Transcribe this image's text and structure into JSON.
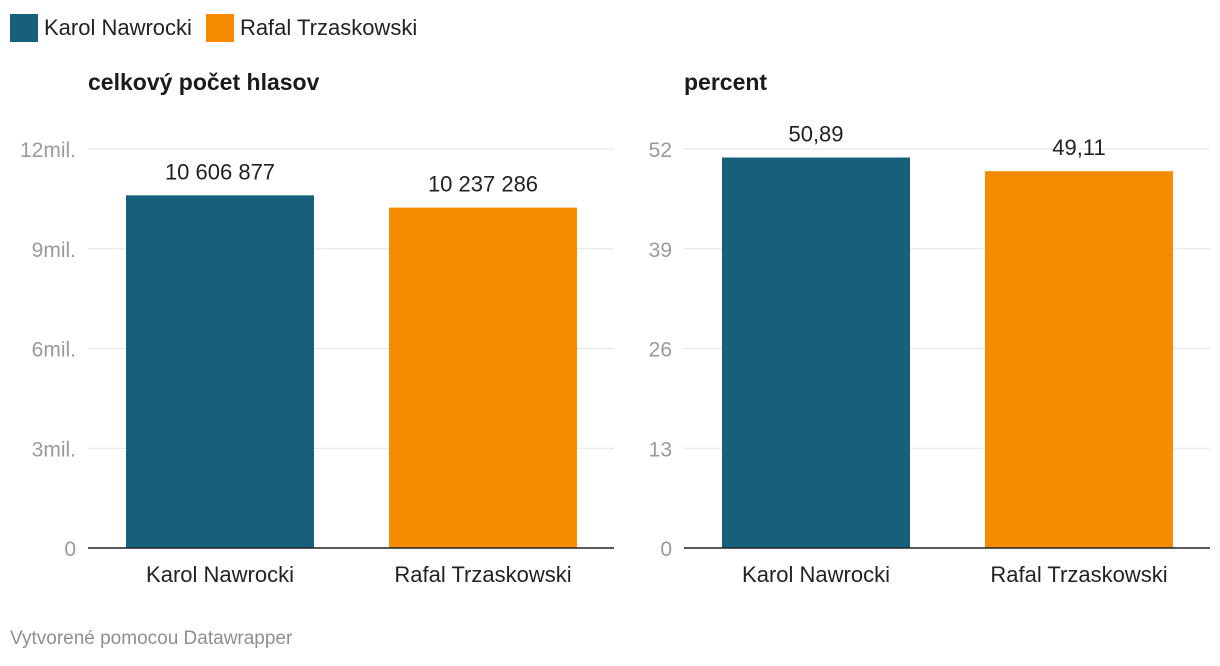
{
  "legend": [
    {
      "label": "Karol Nawrocki",
      "color": "#17607c"
    },
    {
      "label": "Rafal Trzaskowski",
      "color": "#f78b00"
    }
  ],
  "footer": "Vytvorené pomocou Datawrapper",
  "chart_data": [
    {
      "type": "bar",
      "title": "celkový počet hlasov",
      "categories": [
        "Karol Nawrocki",
        "Rafal Trzaskowski"
      ],
      "values": [
        10606877,
        10237286
      ],
      "value_labels": [
        "10 606 877",
        "10 237 286"
      ],
      "colors": [
        "#17607c",
        "#f78b00"
      ],
      "ylim": [
        0,
        12000000
      ],
      "yticks": [
        0,
        3000000,
        6000000,
        9000000,
        12000000
      ],
      "ytick_labels": [
        "0",
        "3mil.",
        "6mil.",
        "9mil.",
        "12mil."
      ],
      "grid": true
    },
    {
      "type": "bar",
      "title": "percent",
      "categories": [
        "Karol Nawrocki",
        "Rafal Trzaskowski"
      ],
      "values": [
        50.89,
        49.11
      ],
      "value_labels": [
        "50,89",
        "49,11"
      ],
      "colors": [
        "#17607c",
        "#f78b00"
      ],
      "ylim": [
        0,
        52
      ],
      "yticks": [
        0,
        13,
        26,
        39,
        52
      ],
      "ytick_labels": [
        "0",
        "13",
        "26",
        "39",
        "52"
      ],
      "grid": true
    }
  ]
}
